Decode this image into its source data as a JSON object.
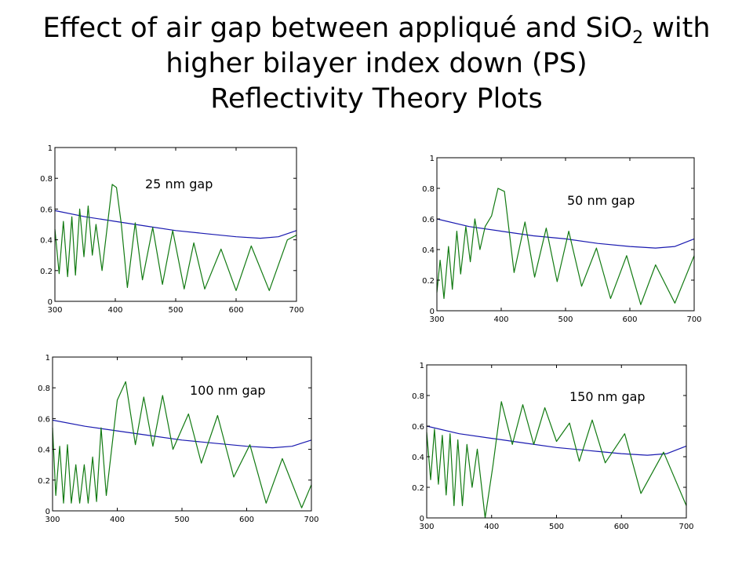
{
  "title": {
    "line1_before": "Effect of air gap between appliqué and SiO",
    "line1_sub": "2",
    "line1_after": " with",
    "line2": "higher bilayer index down (PS)",
    "line3": "Reflectivity Theory Plots"
  },
  "colors": {
    "smooth_curve": "#1a1ab0",
    "oscillating_curve": "#127a12",
    "axes": "#000000"
  },
  "chart_data": [
    {
      "type": "line",
      "annotation": "25 nm gap",
      "xlim": [
        300,
        700
      ],
      "ylim": [
        0,
        1
      ],
      "x_ticks": [
        300,
        400,
        500,
        600,
        700
      ],
      "y_ticks": [
        0,
        0.2,
        0.4,
        0.6,
        0.8,
        1
      ],
      "series": [
        {
          "color": "#1a1ab0",
          "points": [
            [
              300,
              0.59
            ],
            [
              350,
              0.55
            ],
            [
              400,
              0.52
            ],
            [
              450,
              0.49
            ],
            [
              500,
              0.46
            ],
            [
              550,
              0.44
            ],
            [
              600,
              0.42
            ],
            [
              640,
              0.41
            ],
            [
              670,
              0.42
            ],
            [
              700,
              0.46
            ]
          ]
        },
        {
          "color": "#127a12",
          "points": [
            [
              300,
              0.47
            ],
            [
              307,
              0.18
            ],
            [
              314,
              0.52
            ],
            [
              321,
              0.16
            ],
            [
              328,
              0.55
            ],
            [
              334,
              0.17
            ],
            [
              341,
              0.6
            ],
            [
              348,
              0.29
            ],
            [
              355,
              0.62
            ],
            [
              362,
              0.3
            ],
            [
              368,
              0.5
            ],
            [
              378,
              0.2
            ],
            [
              395,
              0.76
            ],
            [
              402,
              0.74
            ],
            [
              410,
              0.5
            ],
            [
              420,
              0.09
            ],
            [
              433,
              0.51
            ],
            [
              445,
              0.14
            ],
            [
              462,
              0.48
            ],
            [
              478,
              0.11
            ],
            [
              495,
              0.46
            ],
            [
              514,
              0.08
            ],
            [
              530,
              0.38
            ],
            [
              548,
              0.08
            ],
            [
              575,
              0.34
            ],
            [
              600,
              0.07
            ],
            [
              625,
              0.36
            ],
            [
              655,
              0.07
            ],
            [
              685,
              0.4
            ],
            [
              700,
              0.43
            ]
          ]
        }
      ]
    },
    {
      "type": "line",
      "annotation": "50 nm gap",
      "xlim": [
        300,
        700
      ],
      "ylim": [
        0,
        1
      ],
      "x_ticks": [
        300,
        400,
        500,
        600,
        700
      ],
      "y_ticks": [
        0,
        0.2,
        0.4,
        0.6,
        0.8,
        1
      ],
      "series": [
        {
          "color": "#1a1ab0",
          "points": [
            [
              300,
              0.6
            ],
            [
              350,
              0.55
            ],
            [
              400,
              0.52
            ],
            [
              450,
              0.49
            ],
            [
              500,
              0.47
            ],
            [
              550,
              0.44
            ],
            [
              600,
              0.42
            ],
            [
              640,
              0.41
            ],
            [
              670,
              0.42
            ],
            [
              700,
              0.47
            ]
          ]
        },
        {
          "color": "#127a12",
          "points": [
            [
              300,
              0.12
            ],
            [
              305,
              0.33
            ],
            [
              311,
              0.08
            ],
            [
              318,
              0.42
            ],
            [
              324,
              0.14
            ],
            [
              331,
              0.52
            ],
            [
              337,
              0.24
            ],
            [
              345,
              0.55
            ],
            [
              352,
              0.32
            ],
            [
              359,
              0.6
            ],
            [
              367,
              0.4
            ],
            [
              375,
              0.55
            ],
            [
              385,
              0.62
            ],
            [
              395,
              0.8
            ],
            [
              405,
              0.78
            ],
            [
              420,
              0.25
            ],
            [
              437,
              0.58
            ],
            [
              452,
              0.22
            ],
            [
              470,
              0.54
            ],
            [
              487,
              0.19
            ],
            [
              505,
              0.52
            ],
            [
              525,
              0.16
            ],
            [
              548,
              0.41
            ],
            [
              570,
              0.08
            ],
            [
              595,
              0.36
            ],
            [
              617,
              0.04
            ],
            [
              640,
              0.3
            ],
            [
              670,
              0.05
            ],
            [
              700,
              0.36
            ]
          ]
        }
      ]
    },
    {
      "type": "line",
      "annotation": "100 nm gap",
      "xlim": [
        300,
        700
      ],
      "ylim": [
        0,
        1
      ],
      "x_ticks": [
        300,
        400,
        500,
        600,
        700
      ],
      "y_ticks": [
        0,
        0.2,
        0.4,
        0.6,
        0.8,
        1
      ],
      "series": [
        {
          "color": "#1a1ab0",
          "points": [
            [
              300,
              0.59
            ],
            [
              350,
              0.55
            ],
            [
              400,
              0.52
            ],
            [
              450,
              0.49
            ],
            [
              500,
              0.46
            ],
            [
              550,
              0.44
            ],
            [
              600,
              0.42
            ],
            [
              640,
              0.41
            ],
            [
              670,
              0.42
            ],
            [
              700,
              0.46
            ]
          ]
        },
        {
          "color": "#127a12",
          "points": [
            [
              300,
              0.54
            ],
            [
              305,
              0.1
            ],
            [
              311,
              0.42
            ],
            [
              317,
              0.05
            ],
            [
              323,
              0.43
            ],
            [
              329,
              0.05
            ],
            [
              336,
              0.3
            ],
            [
              342,
              0.05
            ],
            [
              349,
              0.3
            ],
            [
              355,
              0.05
            ],
            [
              362,
              0.35
            ],
            [
              368,
              0.06
            ],
            [
              375,
              0.54
            ],
            [
              383,
              0.1
            ],
            [
              400,
              0.72
            ],
            [
              413,
              0.84
            ],
            [
              428,
              0.43
            ],
            [
              441,
              0.74
            ],
            [
              455,
              0.42
            ],
            [
              470,
              0.75
            ],
            [
              486,
              0.4
            ],
            [
              510,
              0.63
            ],
            [
              530,
              0.31
            ],
            [
              555,
              0.62
            ],
            [
              580,
              0.22
            ],
            [
              605,
              0.43
            ],
            [
              630,
              0.05
            ],
            [
              655,
              0.34
            ],
            [
              685,
              0.02
            ],
            [
              700,
              0.17
            ]
          ]
        }
      ]
    },
    {
      "type": "line",
      "annotation": "150 nm gap",
      "xlim": [
        300,
        700
      ],
      "ylim": [
        0,
        1
      ],
      "x_ticks": [
        300,
        400,
        500,
        600,
        700
      ],
      "y_ticks": [
        0,
        0.2,
        0.4,
        0.6,
        0.8,
        1
      ],
      "series": [
        {
          "color": "#1a1ab0",
          "points": [
            [
              300,
              0.6
            ],
            [
              350,
              0.55
            ],
            [
              400,
              0.52
            ],
            [
              450,
              0.49
            ],
            [
              500,
              0.46
            ],
            [
              550,
              0.44
            ],
            [
              600,
              0.42
            ],
            [
              640,
              0.41
            ],
            [
              670,
              0.42
            ],
            [
              700,
              0.47
            ]
          ]
        },
        {
          "color": "#127a12",
          "points": [
            [
              300,
              0.56
            ],
            [
              306,
              0.25
            ],
            [
              312,
              0.58
            ],
            [
              318,
              0.22
            ],
            [
              324,
              0.54
            ],
            [
              330,
              0.15
            ],
            [
              336,
              0.55
            ],
            [
              342,
              0.08
            ],
            [
              348,
              0.51
            ],
            [
              355,
              0.08
            ],
            [
              362,
              0.48
            ],
            [
              370,
              0.2
            ],
            [
              378,
              0.45
            ],
            [
              390,
              0.0
            ],
            [
              402,
              0.34
            ],
            [
              415,
              0.76
            ],
            [
              432,
              0.48
            ],
            [
              448,
              0.74
            ],
            [
              465,
              0.48
            ],
            [
              482,
              0.72
            ],
            [
              500,
              0.5
            ],
            [
              520,
              0.62
            ],
            [
              535,
              0.37
            ],
            [
              555,
              0.64
            ],
            [
              575,
              0.36
            ],
            [
              605,
              0.55
            ],
            [
              630,
              0.16
            ],
            [
              665,
              0.43
            ],
            [
              700,
              0.08
            ]
          ]
        }
      ]
    }
  ]
}
